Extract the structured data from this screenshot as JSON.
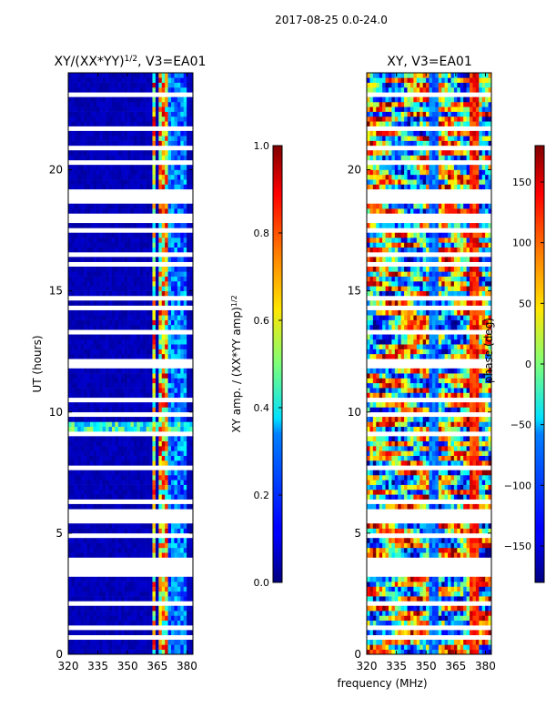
{
  "figure": {
    "suptitle": "2017-08-25 0.0-24.0",
    "shared_xlabel": "frequency (MHz)"
  },
  "chart_data": [
    {
      "type": "heatmap",
      "title_main": "XY/(XX*YY)",
      "title_exp": "1/2",
      "title_tail": ", V3=EA01",
      "ylabel": "UT (hours)",
      "xlim": [
        320,
        383
      ],
      "ylim": [
        0,
        24
      ],
      "xticks": [
        320,
        335,
        350,
        365,
        380
      ],
      "yticks": [
        0,
        5,
        10,
        15,
        20
      ],
      "colorbar": {
        "label_main": "XY amp. / (XX*YY amp)",
        "label_exp": "1/2",
        "range": [
          0.0,
          1.0
        ],
        "ticks": [
          "0.0",
          "0.2",
          "0.4",
          "0.6",
          "0.8",
          "1.0"
        ],
        "colormap": "jet"
      },
      "flagged_ut_ranges": [
        [
          3.45,
          4.0
        ],
        [
          5.4,
          6.0
        ],
        [
          17.8,
          18.1
        ],
        [
          19.0,
          19.2
        ]
      ],
      "bright_bands_mhz": [
        [
          362,
          364.5
        ],
        [
          366,
          367.5
        ],
        [
          368,
          370
        ]
      ],
      "notes": "Amplitude mostly near 0 except persistent high-amplitude RFI bands near 363-370 MHz and enhanced broadband emission around 9.2-9.6 UT"
    },
    {
      "type": "heatmap",
      "title": "XY, V3=EA01",
      "xlim": [
        320,
        383
      ],
      "ylim": [
        0,
        24
      ],
      "xticks": [
        320,
        335,
        350,
        365,
        380
      ],
      "yticks": [
        0,
        5,
        10,
        15,
        20
      ],
      "colorbar": {
        "label": "phase (deg)",
        "range": [
          -180,
          180
        ],
        "ticks": [
          "150",
          "100",
          "50",
          "0",
          "−50",
          "−100",
          "−150"
        ],
        "colormap": "jet"
      },
      "flagged_ut_ranges": [
        [
          3.45,
          4.0
        ],
        [
          5.4,
          6.0
        ],
        [
          17.8,
          18.1
        ],
        [
          19.0,
          19.2
        ]
      ],
      "notes": "Phase varies across full -180 to 180 deg range with banded structure"
    }
  ]
}
